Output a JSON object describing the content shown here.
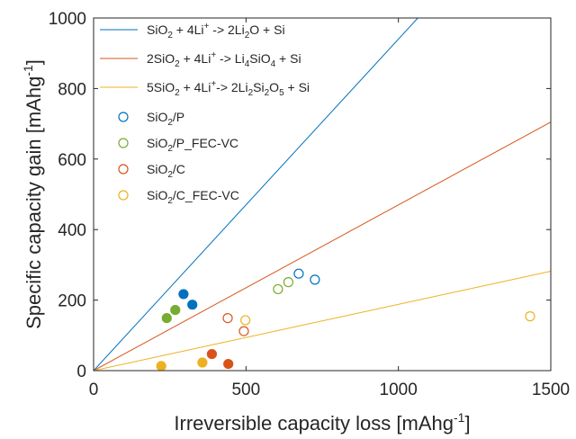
{
  "chart_data": {
    "type": "scatter",
    "xlabel": "Irreversible capacity loss [mAhg",
    "xlabel_sup": "-1",
    "xlabel_end": "]",
    "ylabel": "Specific capacity gain [mAhg",
    "ylabel_sup": "-1",
    "ylabel_end": "]",
    "xlim": [
      0,
      1500
    ],
    "ylim": [
      0,
      1000
    ],
    "xticks": [
      0,
      500,
      1000,
      1500
    ],
    "yticks": [
      0,
      200,
      400,
      600,
      800,
      1000
    ],
    "legend_position": "top-left",
    "lines": [
      {
        "legend": [
          [
            "SiO",
            ""
          ],
          [
            "2",
            "sub"
          ],
          [
            " + 4Li",
            ""
          ],
          [
            "+",
            "sup"
          ],
          " -> 2Li",
          [
            "2",
            "sub"
          ],
          [
            "O + Si",
            ""
          ]
        ],
        "color": "#0072BD",
        "slope": 0.94,
        "x": [
          0,
          1500
        ]
      },
      {
        "legend": [
          "2SiO",
          [
            "2",
            "sub"
          ],
          " + 4Li",
          [
            "+",
            "sup"
          ],
          " -> Li",
          [
            "4",
            "sub"
          ],
          "SiO",
          [
            "4",
            "sub"
          ],
          " + Si"
        ],
        "color": "#D95319",
        "slope": 0.47,
        "x": [
          0,
          1500
        ]
      },
      {
        "legend": [
          "5SiO",
          [
            "2",
            "sub"
          ],
          " + 4Li",
          [
            "+",
            "sup"
          ],
          "-> 2Li",
          [
            "2",
            "sub"
          ],
          "Si",
          [
            "2",
            "sub"
          ],
          "O",
          [
            "5",
            "sub"
          ],
          " + Si"
        ],
        "color": "#EDB120",
        "slope": 0.188,
        "x": [
          0,
          1500
        ]
      }
    ],
    "series": [
      {
        "legend": [
          "SiO",
          [
            "2",
            "sub"
          ],
          "/P"
        ],
        "color": "#0072BD",
        "open_points": [
          [
            673,
            275
          ],
          [
            726,
            258
          ]
        ],
        "filled_points": [
          [
            295,
            217
          ],
          [
            324,
            187
          ]
        ]
      },
      {
        "legend": [
          "SiO",
          [
            "2",
            "sub"
          ],
          "/P_FEC-VC"
        ],
        "color": "#77AC30",
        "open_points": [
          [
            605,
            231
          ],
          [
            639,
            251
          ]
        ],
        "filled_points": [
          [
            240,
            149
          ],
          [
            268,
            172
          ]
        ]
      },
      {
        "legend": [
          "SiO",
          [
            "2",
            "sub"
          ],
          "/C"
        ],
        "color": "#D95319",
        "open_points": [
          [
            440,
            149
          ],
          [
            493,
            112
          ]
        ],
        "filled_points": [
          [
            388,
            47
          ],
          [
            442,
            19
          ]
        ]
      },
      {
        "legend": [
          "SiO",
          [
            "2",
            "sub"
          ],
          "/C_FEC-VC"
        ],
        "color": "#EDB120",
        "open_points": [
          [
            498,
            143
          ],
          [
            1432,
            154
          ]
        ],
        "filled_points": [
          [
            222,
            13
          ],
          [
            357,
            23
          ]
        ]
      }
    ]
  }
}
